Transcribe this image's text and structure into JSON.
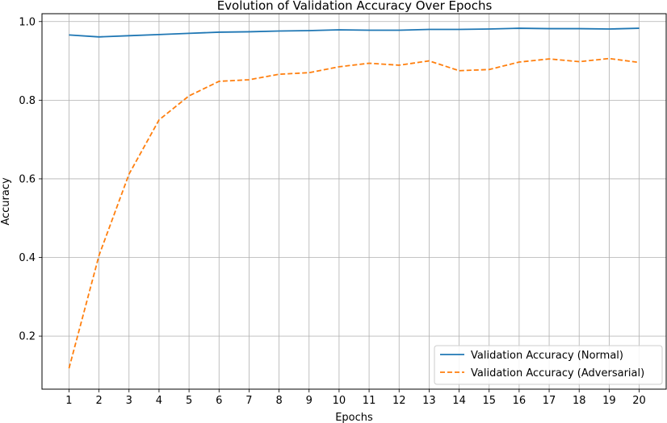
{
  "chart_data": {
    "type": "line",
    "title": "Evolution of Validation Accuracy Over Epochs",
    "xlabel": "Epochs",
    "ylabel": "Accuracy",
    "x": [
      1,
      2,
      3,
      4,
      5,
      6,
      7,
      8,
      9,
      10,
      11,
      12,
      13,
      14,
      15,
      16,
      17,
      18,
      19,
      20
    ],
    "xlim": [
      0.1,
      20.9
    ],
    "ylim": [
      0.065,
      1.02
    ],
    "xticks": [
      "1",
      "2",
      "3",
      "4",
      "5",
      "6",
      "7",
      "8",
      "9",
      "10",
      "11",
      "12",
      "13",
      "14",
      "15",
      "16",
      "17",
      "18",
      "19",
      "20"
    ],
    "yticks": [
      {
        "value": 0.2,
        "label": "0.2"
      },
      {
        "value": 0.4,
        "label": "0.4"
      },
      {
        "value": 0.6,
        "label": "0.6"
      },
      {
        "value": 0.8,
        "label": "0.8"
      },
      {
        "value": 1.0,
        "label": "1.0"
      }
    ],
    "grid": true,
    "legend_position": "lower-right",
    "series": [
      {
        "name": "Validation Accuracy (Normal)",
        "color": "#1f77b4",
        "style": "solid",
        "values": [
          0.966,
          0.961,
          0.964,
          0.967,
          0.97,
          0.973,
          0.974,
          0.976,
          0.977,
          0.979,
          0.978,
          0.978,
          0.98,
          0.98,
          0.981,
          0.983,
          0.982,
          0.982,
          0.981,
          0.983
        ]
      },
      {
        "name": "Validation Accuracy (Adversarial)",
        "color": "#ff7f0e",
        "style": "dashed",
        "values": [
          0.118,
          0.405,
          0.612,
          0.75,
          0.811,
          0.848,
          0.852,
          0.866,
          0.87,
          0.885,
          0.894,
          0.889,
          0.9,
          0.875,
          0.878,
          0.897,
          0.905,
          0.898,
          0.906,
          0.896
        ]
      }
    ]
  }
}
